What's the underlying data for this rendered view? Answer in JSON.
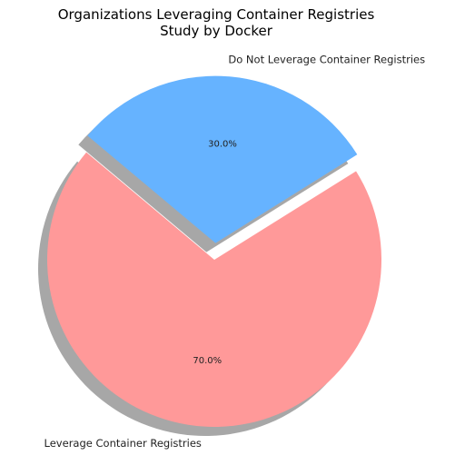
{
  "chart_data": {
    "type": "pie",
    "title": [
      "Organizations Leveraging Container Registries",
      "Study by Docker"
    ],
    "slices": [
      {
        "label": "Leverage Container Registries",
        "value": 70.0,
        "percent_label": "70.0%",
        "color": "#ff9999",
        "exploded": false
      },
      {
        "label": "Do Not Leverage Container Registries",
        "value": 30.0,
        "percent_label": "30.0%",
        "color": "#66b3ff",
        "exploded": true
      }
    ],
    "start_angle": 140,
    "direction": "counterclockwise",
    "shadow": true,
    "shadow_color": "#8a8a8a",
    "legend": false
  }
}
